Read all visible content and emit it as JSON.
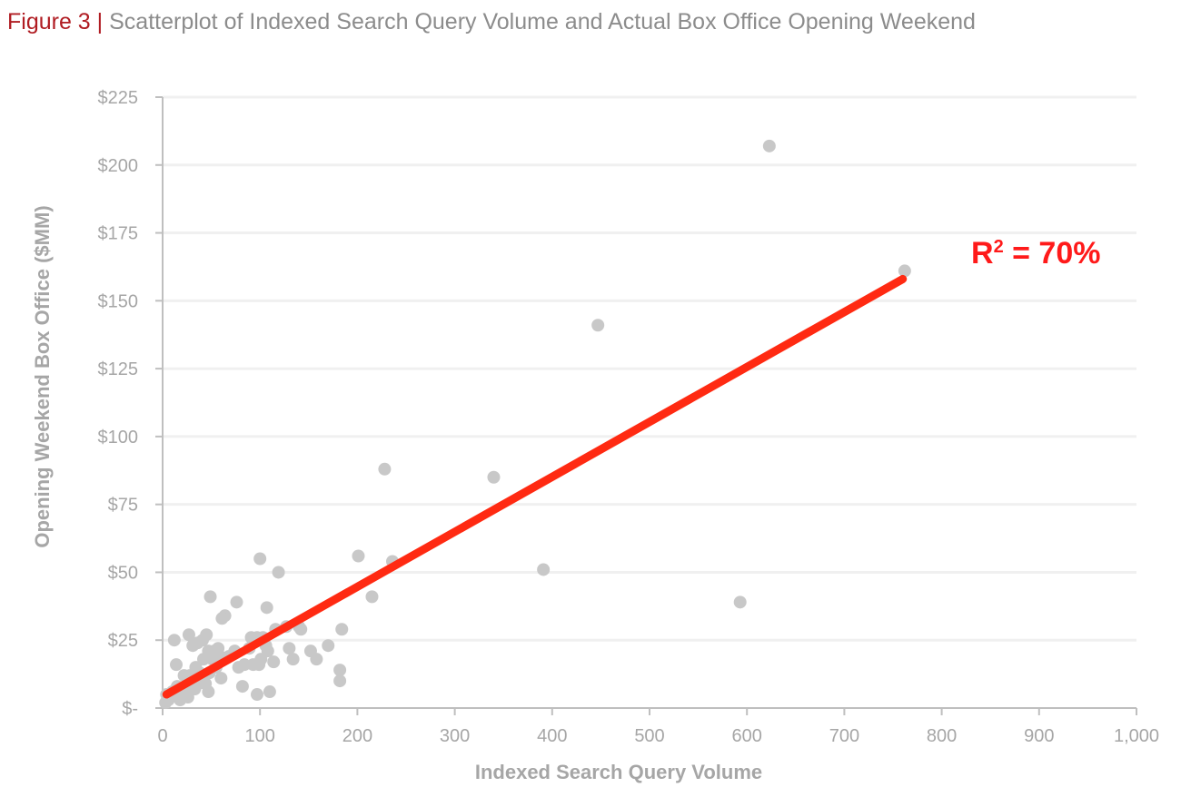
{
  "figure": {
    "label": "Figure 3",
    "separator": "|",
    "title": "Scatterplot of Indexed Search Query Volume and Actual Box Office Opening Weekend"
  },
  "chart_data": {
    "type": "scatter",
    "xlabel": "Indexed Search Query Volume",
    "ylabel": "Opening Weekend Box Office ($MM)",
    "xlim": [
      0,
      1000
    ],
    "ylim": [
      0,
      225
    ],
    "x_ticks": [
      0,
      100,
      200,
      300,
      400,
      500,
      600,
      700,
      800,
      900,
      1000
    ],
    "x_tick_labels": [
      "0",
      "100",
      "200",
      "300",
      "400",
      "500",
      "600",
      "700",
      "800",
      "900",
      "1,000"
    ],
    "y_ticks": [
      0,
      25,
      50,
      75,
      100,
      125,
      150,
      175,
      200,
      225
    ],
    "y_tick_labels": [
      "$-",
      "$25",
      "$50",
      "$75",
      "$100",
      "$125",
      "$150",
      "$175",
      "$200",
      "$225"
    ],
    "grid": "horizontal",
    "colors": {
      "points": "#c8c8c8",
      "trendline": "#ff2a12",
      "annotation": "#ff1a1a",
      "grid": "#f0f0f0",
      "axis": "#bfbfbf"
    },
    "annotation": {
      "base": "R",
      "sup": "2",
      "rest": " = 70%"
    },
    "trendline": {
      "x": [
        4,
        760
      ],
      "y": [
        5,
        158
      ]
    },
    "points": [
      [
        762,
        161
      ],
      [
        623,
        207
      ],
      [
        447,
        141
      ],
      [
        593,
        39
      ],
      [
        391,
        51
      ],
      [
        340,
        85
      ],
      [
        228,
        88
      ],
      [
        236,
        54
      ],
      [
        201,
        56
      ],
      [
        215,
        41
      ],
      [
        184,
        29
      ],
      [
        182,
        14
      ],
      [
        182,
        10
      ],
      [
        170,
        23
      ],
      [
        158,
        18
      ],
      [
        152,
        21
      ],
      [
        142,
        29
      ],
      [
        140,
        30
      ],
      [
        134,
        18
      ],
      [
        130,
        22
      ],
      [
        127,
        30
      ],
      [
        119,
        50
      ],
      [
        116,
        29
      ],
      [
        114,
        17
      ],
      [
        110,
        6
      ],
      [
        108,
        21
      ],
      [
        107,
        37
      ],
      [
        106,
        23
      ],
      [
        103,
        26
      ],
      [
        101,
        18
      ],
      [
        100,
        55
      ],
      [
        99,
        16
      ],
      [
        97,
        26
      ],
      [
        97,
        5
      ],
      [
        93,
        16
      ],
      [
        91,
        26
      ],
      [
        89,
        22
      ],
      [
        84,
        16
      ],
      [
        82,
        8
      ],
      [
        78,
        15
      ],
      [
        76,
        39
      ],
      [
        74,
        21
      ],
      [
        68,
        19
      ],
      [
        64,
        34
      ],
      [
        61,
        33
      ],
      [
        60,
        11
      ],
      [
        59,
        19
      ],
      [
        57,
        22
      ],
      [
        55,
        15
      ],
      [
        53,
        21
      ],
      [
        51,
        18
      ],
      [
        49,
        41
      ],
      [
        48,
        13
      ],
      [
        47,
        21
      ],
      [
        47,
        6
      ],
      [
        45,
        27
      ],
      [
        44,
        9
      ],
      [
        42,
        18
      ],
      [
        41,
        25
      ],
      [
        38,
        13
      ],
      [
        37,
        9
      ],
      [
        36,
        24
      ],
      [
        34,
        15
      ],
      [
        33,
        7
      ],
      [
        31,
        23
      ],
      [
        30,
        11
      ],
      [
        28,
        12
      ],
      [
        27,
        27
      ],
      [
        26,
        4
      ],
      [
        25,
        8
      ],
      [
        22,
        12
      ],
      [
        21,
        7
      ],
      [
        19,
        5
      ],
      [
        18,
        3
      ],
      [
        15,
        8
      ],
      [
        14,
        16
      ],
      [
        12,
        25
      ],
      [
        10,
        6
      ],
      [
        8,
        4
      ],
      [
        6,
        3
      ],
      [
        4,
        5
      ],
      [
        3,
        2
      ]
    ]
  }
}
